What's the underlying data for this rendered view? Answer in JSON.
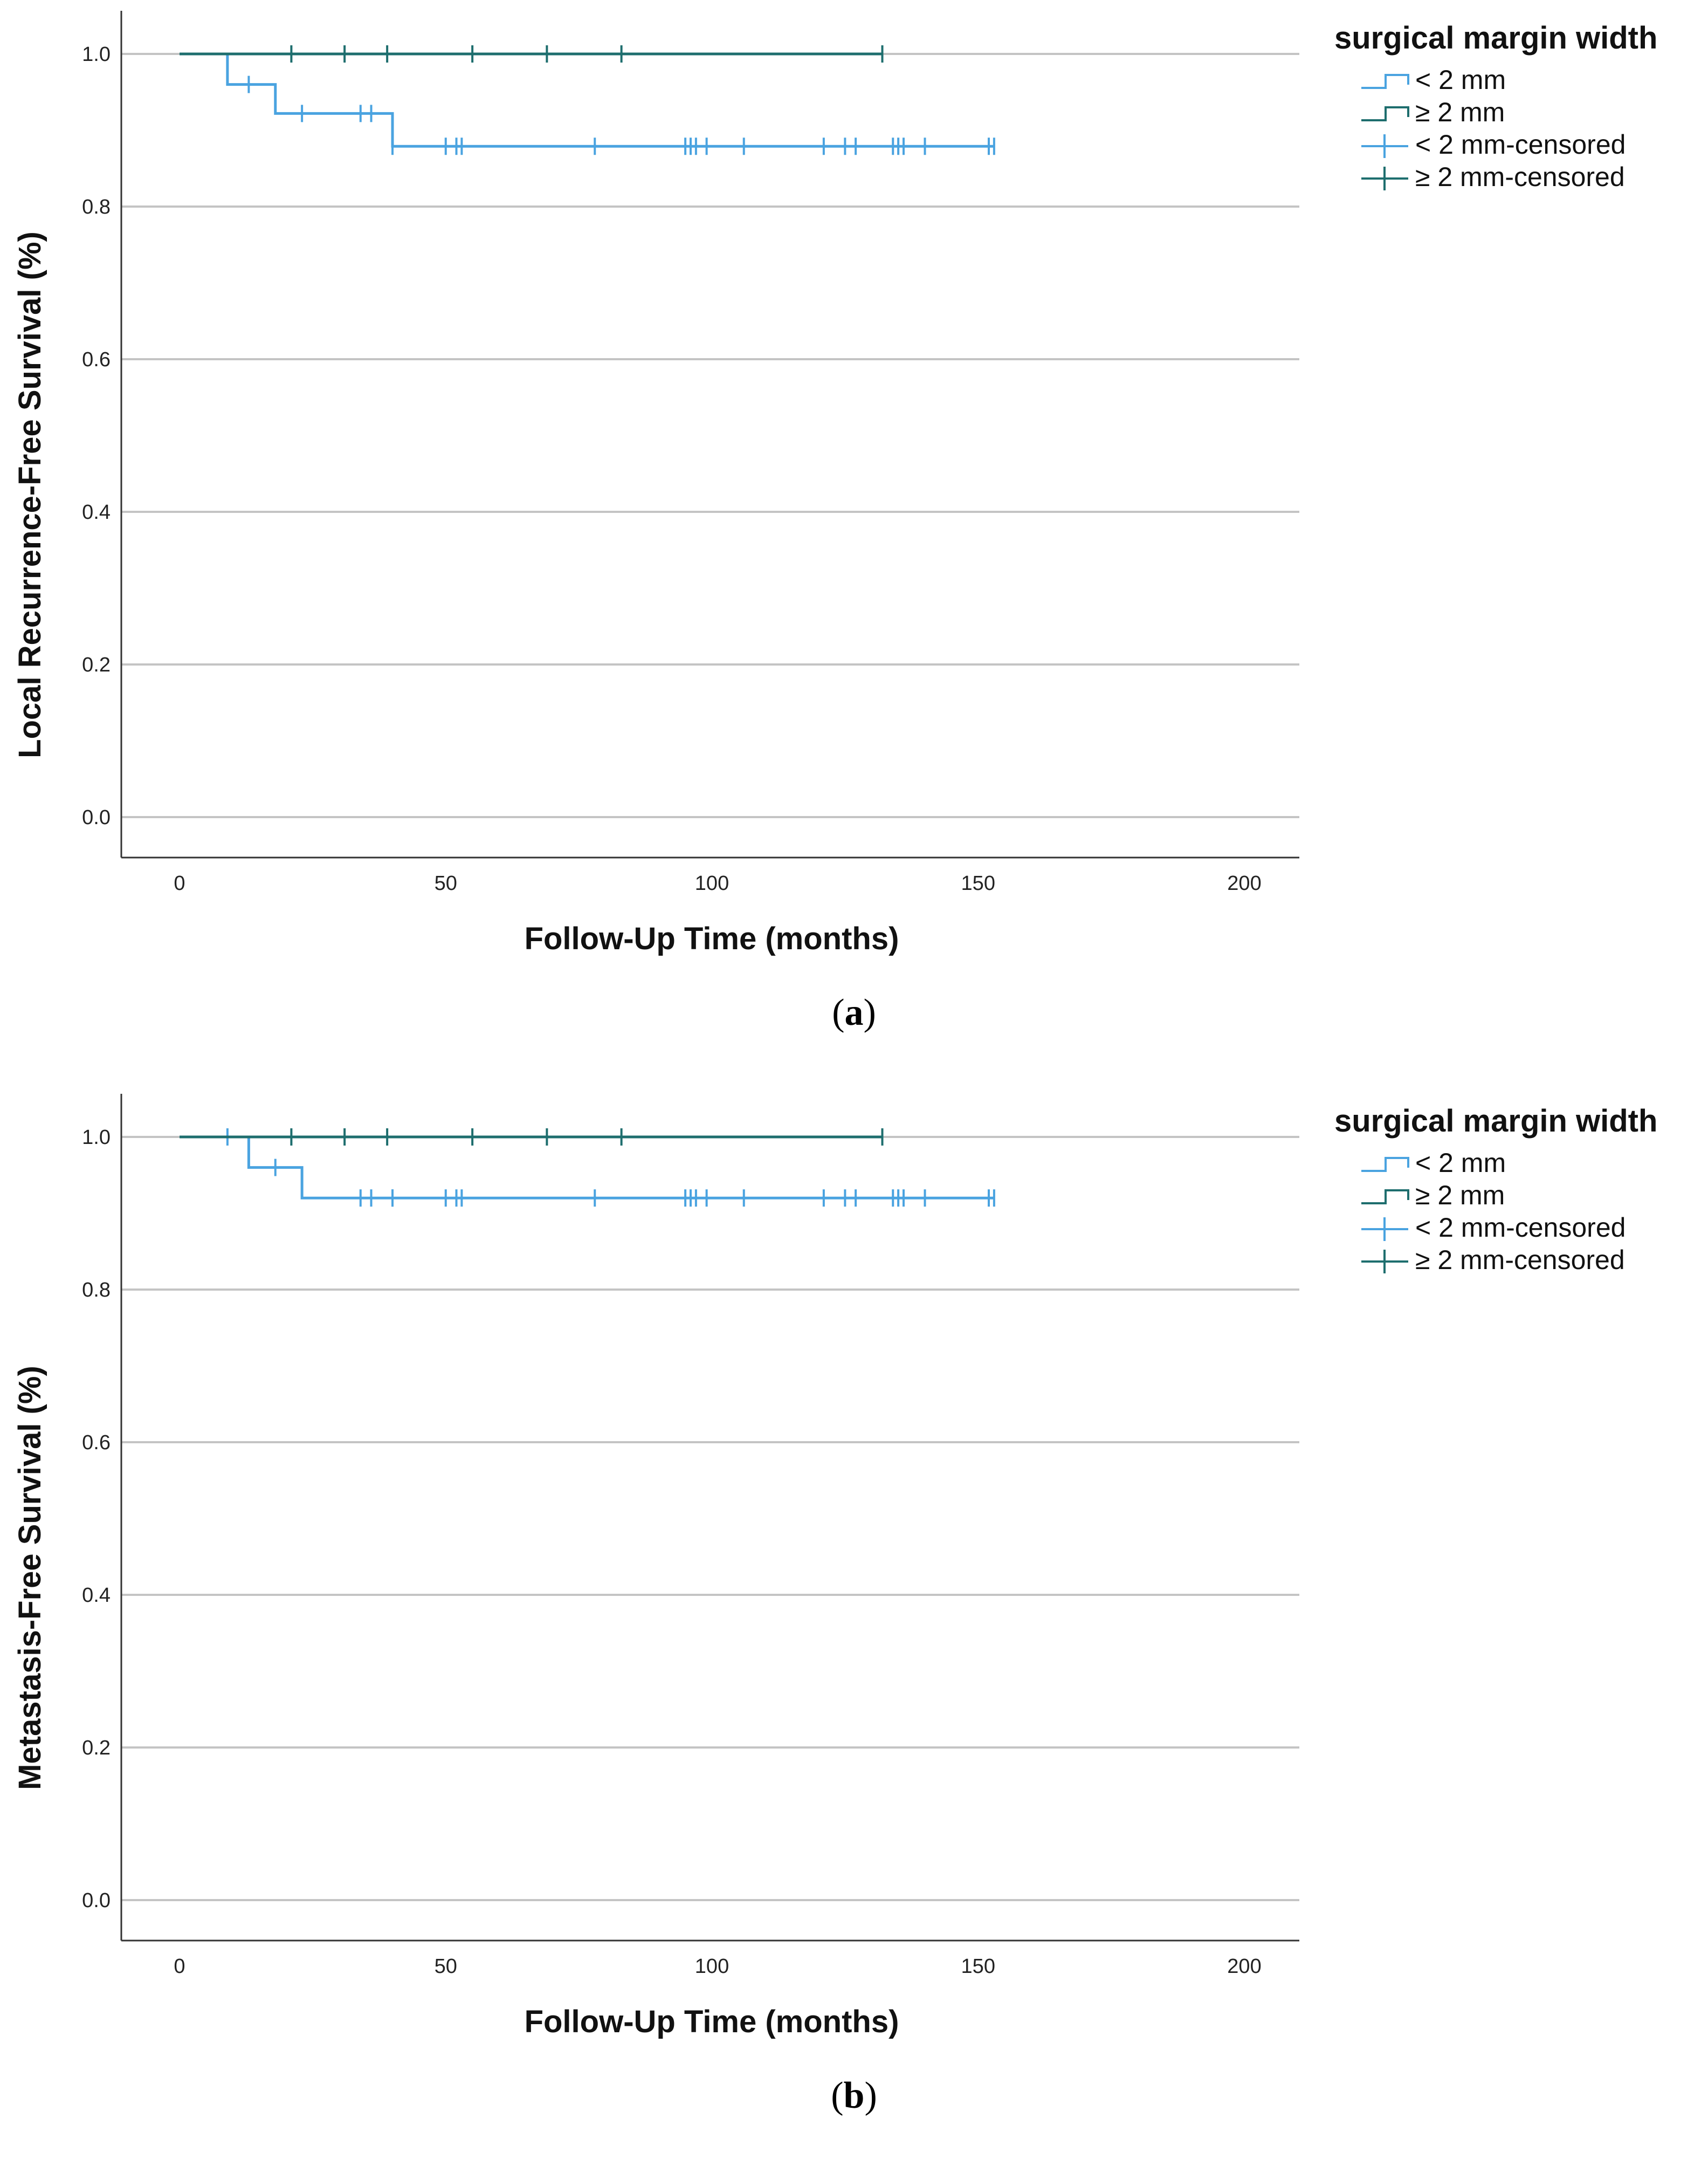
{
  "chart_data": [
    {
      "type": "line",
      "panel_label": "a",
      "xlabel": "Follow-Up Time (months)",
      "ylabel": "Local Recurrence-Free Survival (%)",
      "xlim": [
        0,
        200
      ],
      "ylim": [
        0.0,
        1.0
      ],
      "xticks": [
        "0",
        "50",
        "100",
        "150",
        "200"
      ],
      "yticks": [
        "0.0",
        "0.2",
        "0.4",
        "0.6",
        "0.8",
        "1.0"
      ],
      "grid": "horizontal",
      "legend": {
        "title": "surgical margin width",
        "position": "top-right",
        "entries": [
          "< 2 mm",
          "≥ 2 mm",
          "< 2 mm-censored",
          "≥ 2 mm-censored"
        ]
      },
      "series": [
        {
          "name": "< 2 mm",
          "color": "#4aa3e0",
          "steps": [
            [
              0,
              1.0
            ],
            [
              9,
              0.96
            ],
            [
              18,
              0.922
            ],
            [
              40,
              0.879
            ]
          ],
          "end": 153,
          "censored": [
            13,
            23,
            34,
            36,
            40,
            50,
            52,
            53,
            78,
            95,
            96,
            97,
            99,
            106,
            121,
            125,
            127,
            134,
            135,
            136,
            140,
            152,
            153
          ]
        },
        {
          "name": "≥ 2 mm",
          "color": "#1e6e6e",
          "steps": [
            [
              0,
              1.0
            ]
          ],
          "end": 132,
          "censored": [
            21,
            31,
            39,
            55,
            69,
            83,
            132
          ]
        }
      ]
    },
    {
      "type": "line",
      "panel_label": "b",
      "xlabel": "Follow-Up Time (months)",
      "ylabel": "Metastasis-Free Survival (%)",
      "xlim": [
        0,
        200
      ],
      "ylim": [
        0.0,
        1.0
      ],
      "xticks": [
        "0",
        "50",
        "100",
        "150",
        "200"
      ],
      "yticks": [
        "0.0",
        "0.2",
        "0.4",
        "0.6",
        "0.8",
        "1.0"
      ],
      "grid": "horizontal",
      "legend": {
        "title": "surgical margin width",
        "position": "top-right",
        "entries": [
          "< 2 mm",
          "≥ 2 mm",
          "< 2 mm-censored",
          "≥ 2 mm-censored"
        ]
      },
      "series": [
        {
          "name": "< 2 mm",
          "color": "#4aa3e0",
          "steps": [
            [
              0,
              1.0
            ],
            [
              13,
              0.96
            ],
            [
              23,
              0.92
            ]
          ],
          "end": 153,
          "censored": [
            9,
            18,
            34,
            36,
            40,
            40,
            50,
            52,
            53,
            78,
            95,
            96,
            97,
            99,
            106,
            121,
            125,
            127,
            134,
            135,
            136,
            140,
            152,
            153
          ]
        },
        {
          "name": "≥ 2 mm",
          "color": "#1e6e6e",
          "steps": [
            [
              0,
              1.0
            ]
          ],
          "end": 132,
          "censored": [
            21,
            31,
            39,
            55,
            69,
            83,
            132
          ]
        }
      ]
    }
  ]
}
